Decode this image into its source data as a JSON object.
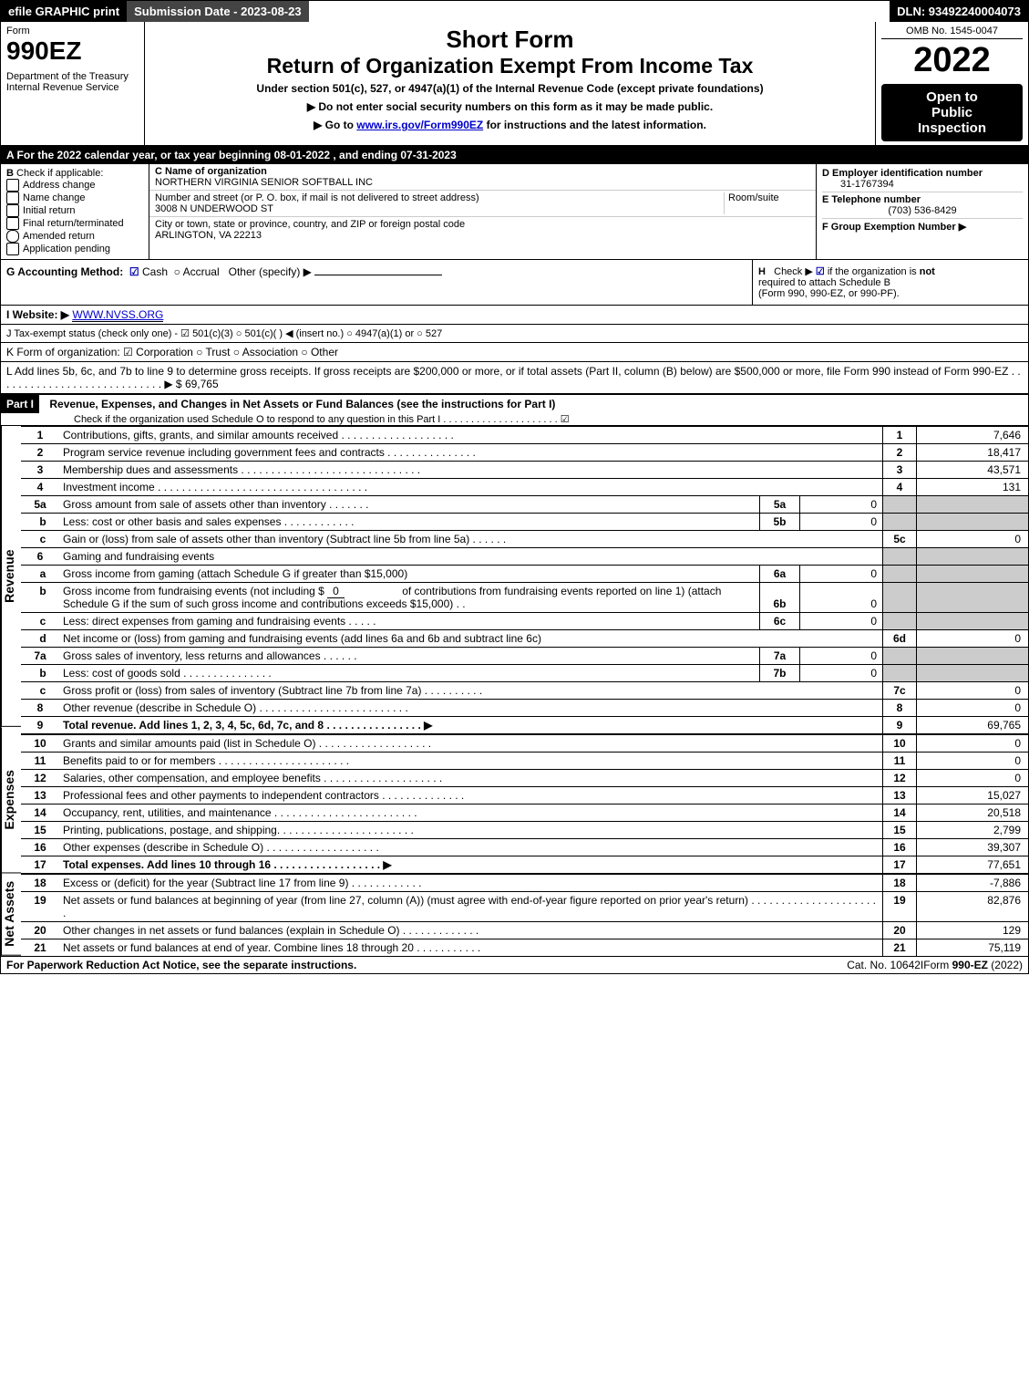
{
  "topbar": {
    "efile": "efile GRAPHIC print",
    "submission": "Submission Date - 2023-08-23",
    "dln": "DLN: 93492240004073"
  },
  "header": {
    "form_word": "Form",
    "form_num": "990EZ",
    "dept": "Department of the Treasury",
    "irs": "Internal Revenue Service",
    "title1": "Short Form",
    "title2": "Return of Organization Exempt From Income Tax",
    "subtitle": "Under section 501(c), 527, or 4947(a)(1) of the Internal Revenue Code (except private foundations)",
    "warn": "▶ Do not enter social security numbers on this form as it may be made public.",
    "goto": "▶ Go to ",
    "goto_link": "www.irs.gov/Form990EZ",
    "goto_after": " for instructions and the latest information.",
    "omb": "OMB No. 1545-0047",
    "year": "2022",
    "inspection1": "Open to",
    "inspection2": "Public",
    "inspection3": "Inspection"
  },
  "sectionA": "A  For the 2022 calendar year, or tax year beginning 08-01-2022 , and ending 07-31-2023",
  "sectionB": {
    "label": "B",
    "check_label": "Check if applicable:",
    "opts": [
      "Address change",
      "Name change",
      "Initial return",
      "Final return/terminated",
      "Amended return",
      "Application pending"
    ]
  },
  "sectionC": {
    "name_label": "C Name of organization",
    "name": "NORTHERN VIRGINIA SENIOR SOFTBALL INC",
    "street_label": "Number and street (or P. O. box, if mail is not delivered to street address)",
    "street": "3008 N UNDERWOOD ST",
    "room_label": "Room/suite",
    "city_label": "City or town, state or province, country, and ZIP or foreign postal code",
    "city": "ARLINGTON, VA  22213"
  },
  "sectionD": {
    "ein_label": "D Employer identification number",
    "ein": "31-1767394",
    "tel_label": "E Telephone number",
    "tel": "(703) 536-8429",
    "group_label": "F Group Exemption Number  ▶"
  },
  "rowG": {
    "label": "G Accounting Method:",
    "cash": "Cash",
    "accrual": "Accrual",
    "other": "Other (specify) ▶"
  },
  "rowH": {
    "label": "H",
    "text1": "Check ▶",
    "text2": "if the organization is ",
    "not": "not",
    "text3": "required to attach Schedule B",
    "text4": "(Form 990, 990-EZ, or 990-PF)."
  },
  "rowI": {
    "label": "I Website: ▶",
    "url": "WWW.NVSS.ORG"
  },
  "rowJ": "J Tax-exempt status (check only one) - ☑ 501(c)(3)  ○ 501(c)(  ) ◀ (insert no.)  ○ 4947(a)(1) or  ○ 527",
  "rowK": "K Form of organization:   ☑ Corporation   ○ Trust   ○ Association   ○ Other",
  "rowL": {
    "text": "L Add lines 5b, 6c, and 7b to line 9 to determine gross receipts. If gross receipts are $200,000 or more, or if total assets (Part II, column (B) below) are $500,000 or more, file Form 990 instead of Form 990-EZ  .  .  .  .  .  .  .  .  .  .  .  .  .  .  .  .  .  .  .  .  .  .  .  .  .  .  .  . ▶ $",
    "amount": "69,765"
  },
  "part1": {
    "label": "Part I",
    "title": "Revenue, Expenses, and Changes in Net Assets or Fund Balances (see the instructions for Part I)",
    "sub": "Check if the organization used Schedule O to respond to any question in this Part I .  .  .  .  .  .  .  .  .  .  .  .  .  .  .  .  .  .  .  .  .  ☑"
  },
  "sides": {
    "revenue": "Revenue",
    "expenses": "Expenses",
    "netassets": "Net Assets"
  },
  "revenue_lines": [
    {
      "n": "1",
      "t": "Contributions, gifts, grants, and similar amounts received  .  .  .  .  .  .  .  .  .  .  .  .  .  .  .  .  .  .  .",
      "r": "1",
      "v": "7,646"
    },
    {
      "n": "2",
      "t": "Program service revenue including government fees and contracts  .  .  .  .  .  .  .  .  .  .  .  .  .  .  .",
      "r": "2",
      "v": "18,417"
    },
    {
      "n": "3",
      "t": "Membership dues and assessments  .  .  .  .  .  .  .  .  .  .  .  .  .  .  .  .  .  .  .  .  .  .  .  .  .  .  .  .  .  .",
      "r": "3",
      "v": "43,571"
    },
    {
      "n": "4",
      "t": "Investment income  .  .  .  .  .  .  .  .  .  .  .  .  .  .  .  .  .  .  .  .  .  .  .  .  .  .  .  .  .  .  .  .  .  .  .",
      "r": "4",
      "v": "131"
    }
  ],
  "line5a": {
    "n": "5a",
    "t": "Gross amount from sale of assets other than inventory  .  .  .  .  .  .  .",
    "box": "5a",
    "bv": "0"
  },
  "line5b": {
    "n": "b",
    "t": "Less: cost or other basis and sales expenses  .  .  .  .  .  .  .  .  .  .  .  .",
    "box": "5b",
    "bv": "0"
  },
  "line5c": {
    "n": "c",
    "t": "Gain or (loss) from sale of assets other than inventory (Subtract line 5b from line 5a)  .  .  .  .  .  .",
    "r": "5c",
    "v": "0"
  },
  "line6": {
    "n": "6",
    "t": "Gaming and fundraising events"
  },
  "line6a": {
    "n": "a",
    "t": "Gross income from gaming (attach Schedule G if greater than $15,000)",
    "box": "6a",
    "bv": "0"
  },
  "line6b": {
    "n": "b",
    "t": "Gross income from fundraising events (not including $",
    "t_val": "0",
    "t2": "of contributions from fundraising events reported on line 1) (attach Schedule G if the sum of such gross income and contributions exceeds $15,000)   .   .",
    "box": "6b",
    "bv": "0"
  },
  "line6c": {
    "n": "c",
    "t": "Less: direct expenses from gaming and fundraising events   .  .  .  .  .",
    "box": "6c",
    "bv": "0"
  },
  "line6d": {
    "n": "d",
    "t": "Net income or (loss) from gaming and fundraising events (add lines 6a and 6b and subtract line 6c)",
    "r": "6d",
    "v": "0"
  },
  "line7a": {
    "n": "7a",
    "t": "Gross sales of inventory, less returns and allowances  .  .  .  .  .  .",
    "box": "7a",
    "bv": "0"
  },
  "line7b": {
    "n": "b",
    "t": "Less: cost of goods sold        .   .   .   .   .   .   .   .   .   .   .   .   .   .   .",
    "box": "7b",
    "bv": "0"
  },
  "line7c": {
    "n": "c",
    "t": "Gross profit or (loss) from sales of inventory (Subtract line 7b from line 7a)  .  .  .  .  .  .  .  .  .  .",
    "r": "7c",
    "v": "0"
  },
  "line8": {
    "n": "8",
    "t": "Other revenue (describe in Schedule O)  .  .  .  .  .  .  .  .  .  .  .  .  .  .  .  .  .  .  .  .  .  .  .  .  .",
    "r": "8",
    "v": "0"
  },
  "line9": {
    "n": "9",
    "t": "Total revenue. Add lines 1, 2, 3, 4, 5c, 6d, 7c, and 8   .   .   .   .   .   .   .   .   .   .   .   .   .   .   .   .   ▶",
    "r": "9",
    "v": "69,765",
    "bold": true
  },
  "expense_lines": [
    {
      "n": "10",
      "t": "Grants and similar amounts paid (list in Schedule O)  .  .  .  .  .  .  .  .  .  .  .  .  .  .  .  .  .  .  .",
      "r": "10",
      "v": "0"
    },
    {
      "n": "11",
      "t": "Benefits paid to or for members      .   .   .   .   .   .   .   .   .   .   .   .   .   .   .   .   .   .   .   .   .   .",
      "r": "11",
      "v": "0"
    },
    {
      "n": "12",
      "t": "Salaries, other compensation, and employee benefits .  .  .  .  .  .  .  .  .  .  .  .  .  .  .  .  .  .  .  .",
      "r": "12",
      "v": "0"
    },
    {
      "n": "13",
      "t": "Professional fees and other payments to independent contractors  .  .  .  .  .  .  .  .  .  .  .  .  .  .",
      "r": "13",
      "v": "15,027"
    },
    {
      "n": "14",
      "t": "Occupancy, rent, utilities, and maintenance .  .  .  .  .  .  .  .  .  .  .  .  .  .  .  .  .  .  .  .  .  .  .  .",
      "r": "14",
      "v": "20,518"
    },
    {
      "n": "15",
      "t": "Printing, publications, postage, and shipping.  .  .  .  .  .  .  .  .  .  .  .  .  .  .  .  .  .  .  .  .  .  .",
      "r": "15",
      "v": "2,799"
    },
    {
      "n": "16",
      "t": "Other expenses (describe in Schedule O)      .   .   .   .   .   .   .   .   .   .   .   .   .   .   .   .   .   .   .",
      "r": "16",
      "v": "39,307"
    },
    {
      "n": "17",
      "t": "Total expenses. Add lines 10 through 16      .   .   .   .   .   .   .   .   .   .   .   .   .   .   .   .   .   .   ▶",
      "r": "17",
      "v": "77,651",
      "bold": true
    }
  ],
  "net_lines": [
    {
      "n": "18",
      "t": "Excess or (deficit) for the year (Subtract line 17 from line 9)        .   .   .   .   .   .   .   .   .   .   .   .",
      "r": "18",
      "v": "-7,886"
    },
    {
      "n": "19",
      "t": "Net assets or fund balances at beginning of year (from line 27, column (A)) (must agree with end-of-year figure reported on prior year's return) .  .  .  .  .  .  .  .  .  .  .  .  .  .  .  .  .  .  .  .  .  .",
      "r": "19",
      "v": "82,876"
    },
    {
      "n": "20",
      "t": "Other changes in net assets or fund balances (explain in Schedule O) .  .  .  .  .  .  .  .  .  .  .  .  .",
      "r": "20",
      "v": "129"
    },
    {
      "n": "21",
      "t": "Net assets or fund balances at end of year. Combine lines 18 through 20 .  .  .  .  .  .  .  .  .  .  .",
      "r": "21",
      "v": "75,119"
    }
  ],
  "footer": {
    "left": "For Paperwork Reduction Act Notice, see the separate instructions.",
    "mid": "Cat. No. 10642I",
    "right_pre": "Form ",
    "right_form": "990-EZ",
    "right_post": " (2022)"
  }
}
